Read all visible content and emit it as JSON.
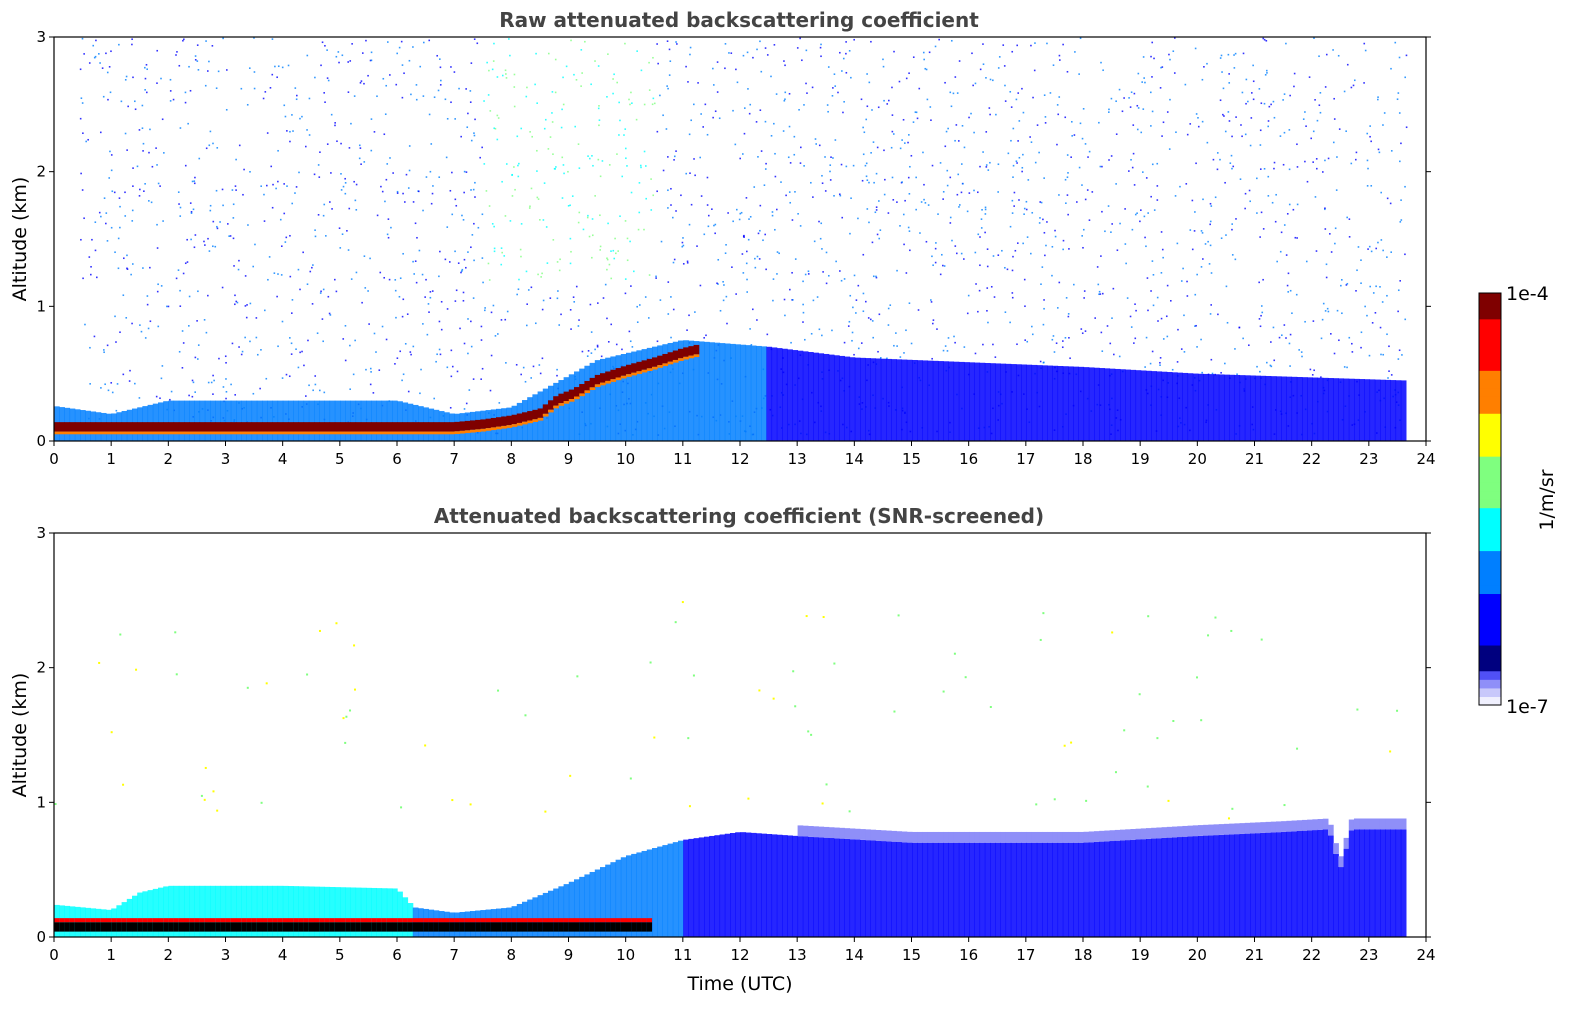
{
  "colors": {
    "jet": [
      "#00007f",
      "#0000ff",
      "#007fff",
      "#00ffff",
      "#7fff7f",
      "#ffff00",
      "#ff7f00",
      "#ff0000",
      "#7f0000"
    ],
    "pale_low": [
      "#f0f0fe",
      "#c8c8fb",
      "#8f8ff8",
      "#5050f5"
    ],
    "title": "#444444",
    "black_layer": "#000000"
  },
  "colorbar": {
    "top_label": "1e-4",
    "bottom_label": "1e-7",
    "unit_label": "1/m/sr"
  },
  "chart_data": [
    {
      "type": "heatmap",
      "name": "raw",
      "title": "Raw attenuated backscattering coefficient",
      "xlabel": "",
      "ylabel": "Altitude (km)",
      "xlim": [
        0,
        24
      ],
      "ylim": [
        0,
        3
      ],
      "xticks": [
        "0",
        "1",
        "2",
        "3",
        "4",
        "5",
        "6",
        "7",
        "8",
        "9",
        "10",
        "11",
        "12",
        "13",
        "14",
        "15",
        "16",
        "17",
        "18",
        "19",
        "20",
        "21",
        "22",
        "23",
        "24"
      ],
      "yticks": [
        "0",
        "1",
        "2",
        "3"
      ],
      "data_end_time": 23.65,
      "noise_start_time": 0.45,
      "cloud_base_km": [
        [
          0.0,
          0.1
        ],
        [
          1.0,
          0.1
        ],
        [
          7.0,
          0.1
        ],
        [
          7.5,
          0.12
        ],
        [
          8.0,
          0.15
        ],
        [
          8.5,
          0.2
        ],
        [
          8.8,
          0.3
        ],
        [
          9.1,
          0.35
        ],
        [
          9.5,
          0.45
        ],
        [
          10.0,
          0.52
        ],
        [
          10.5,
          0.58
        ],
        [
          11.0,
          0.65
        ],
        [
          11.3,
          0.68
        ]
      ],
      "aerosol_top_km": [
        [
          0.0,
          0.26
        ],
        [
          1.0,
          0.2
        ],
        [
          2.0,
          0.3
        ],
        [
          6.0,
          0.3
        ],
        [
          7.0,
          0.2
        ],
        [
          8.0,
          0.25
        ],
        [
          9.5,
          0.6
        ],
        [
          11.0,
          0.75
        ],
        [
          12.5,
          0.7
        ],
        [
          14.0,
          0.62
        ],
        [
          18.0,
          0.55
        ],
        [
          20.0,
          0.5
        ],
        [
          23.6,
          0.45
        ]
      ],
      "greenish_plume_hours": [
        7.5,
        10.5
      ]
    },
    {
      "type": "heatmap",
      "name": "screened",
      "title": "Attenuated backscattering coefficient (SNR-screened)",
      "xlabel": "Time (UTC)",
      "ylabel": "Altitude (km)",
      "xlim": [
        0,
        24
      ],
      "ylim": [
        0,
        3
      ],
      "xticks": [
        "0",
        "1",
        "2",
        "3",
        "4",
        "5",
        "6",
        "7",
        "8",
        "9",
        "10",
        "11",
        "12",
        "13",
        "14",
        "15",
        "16",
        "17",
        "18",
        "19",
        "20",
        "21",
        "22",
        "23",
        "24"
      ],
      "yticks": [
        "0",
        "1",
        "2",
        "3"
      ],
      "data_end_time": 23.65,
      "layer_top_km": [
        [
          0.0,
          0.24
        ],
        [
          1.0,
          0.2
        ],
        [
          1.5,
          0.33
        ],
        [
          2.0,
          0.38
        ],
        [
          4.0,
          0.38
        ],
        [
          6.0,
          0.36
        ],
        [
          6.3,
          0.22
        ],
        [
          7.0,
          0.18
        ],
        [
          8.0,
          0.22
        ],
        [
          9.0,
          0.4
        ],
        [
          10.0,
          0.6
        ],
        [
          11.0,
          0.72
        ],
        [
          12.0,
          0.78
        ],
        [
          13.0,
          0.75
        ],
        [
          15.0,
          0.7
        ],
        [
          18.0,
          0.7
        ],
        [
          20.0,
          0.75
        ],
        [
          21.5,
          0.78
        ],
        [
          22.3,
          0.8
        ],
        [
          22.5,
          0.5
        ],
        [
          22.7,
          0.8
        ],
        [
          23.6,
          0.8
        ]
      ],
      "tip_hours": [
        22.3,
        22.7
      ]
    }
  ]
}
